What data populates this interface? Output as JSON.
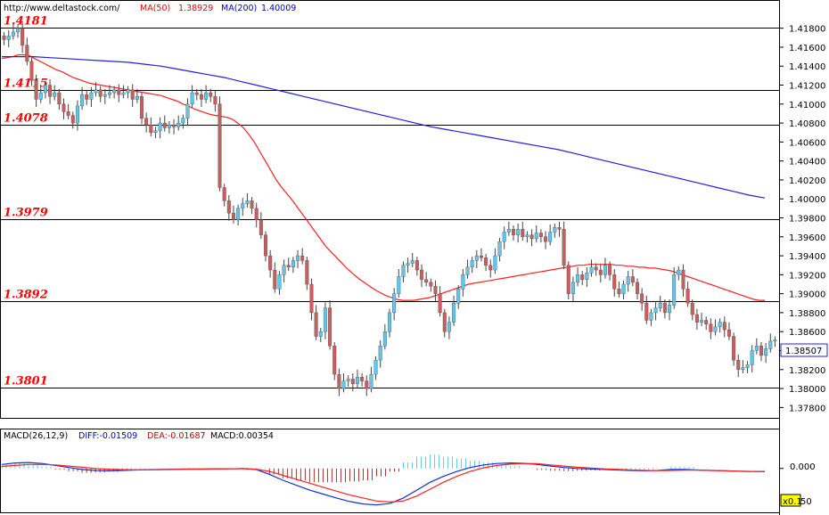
{
  "header": {
    "url": "http://www.deltastock.com/",
    "ma50_label": "MA(50)",
    "ma50_value": "1.38929",
    "ma200_label": "MA(200)",
    "ma200_value": "1.40009"
  },
  "macd_header": {
    "label": "MACD(26,12,9)",
    "diff": "DIFF:-0.01509",
    "dea": "DEA:-0.01687",
    "macd": "MACD:0.00354"
  },
  "colors": {
    "up_candle": "#5bc8f0",
    "down_candle": "#cd5c5c",
    "ma50": "#ff2020",
    "ma200": "#2020e0",
    "level_text": "#ff0000",
    "diff_line": "#1030e0",
    "dea_line": "#ff2020",
    "hist_pos": "#5bc8f0",
    "hist_neg": "#b03030"
  },
  "chart_data": {
    "type": "candlestick",
    "ylim": [
      1.377,
      1.4206
    ],
    "y_ticks": [
      "1.41800",
      "1.41600",
      "1.41400",
      "1.41200",
      "1.41000",
      "1.40800",
      "1.40600",
      "1.40400",
      "1.40200",
      "1.40000",
      "1.39800",
      "1.39600",
      "1.39400",
      "1.39200",
      "1.39000",
      "1.38800",
      "1.38600",
      "1.38400",
      "1.38200",
      "1.38000",
      "1.37800"
    ],
    "current_price": "1.38507",
    "levels": [
      {
        "label": "1.4181",
        "value": 1.4181
      },
      {
        "label": "1.4115",
        "value": 1.4115
      },
      {
        "label": "1.4078",
        "value": 1.4078
      },
      {
        "label": "1.3979",
        "value": 1.3979
      },
      {
        "label": "1.3892",
        "value": 1.3892
      },
      {
        "label": "1.3801",
        "value": 1.3801
      }
    ],
    "closes": [
      1.4168,
      1.4172,
      1.4176,
      1.418,
      1.4162,
      1.4145,
      1.4125,
      1.4105,
      1.4112,
      1.412,
      1.4108,
      1.4112,
      1.41,
      1.4092,
      1.4088,
      1.408,
      1.4098,
      1.411,
      1.4105,
      1.4112,
      1.4115,
      1.4108,
      1.411,
      1.4112,
      1.4115,
      1.411,
      1.4112,
      1.4115,
      1.4105,
      1.4108,
      1.4085,
      1.4078,
      1.407,
      1.4072,
      1.408,
      1.4075,
      1.4078,
      1.4076,
      1.408,
      1.4085,
      1.41,
      1.4112,
      1.411,
      1.4105,
      1.4112,
      1.4108,
      1.41,
      1.4012,
      1.3998,
      1.3985,
      1.3978,
      1.399,
      1.3995,
      1.3998,
      1.399,
      1.3978,
      1.3962,
      1.394,
      1.3925,
      1.3905,
      1.392,
      1.393,
      1.3928,
      1.3935,
      1.394,
      1.3935,
      1.391,
      1.388,
      1.3855,
      1.386,
      1.3885,
      1.3845,
      1.3815,
      1.38,
      1.3808,
      1.381,
      1.3805,
      1.3812,
      1.3808,
      1.38,
      1.3815,
      1.383,
      1.3845,
      1.386,
      1.388,
      1.39,
      1.3918,
      1.393,
      1.3932,
      1.3935,
      1.3925,
      1.3915,
      1.3912,
      1.3908,
      1.39,
      1.388,
      1.386,
      1.387,
      1.389,
      1.3905,
      1.392,
      1.3928,
      1.3935,
      1.394,
      1.3938,
      1.393,
      1.3925,
      1.394,
      1.3955,
      1.3965,
      1.3968,
      1.3962,
      1.3968,
      1.396,
      1.3962,
      1.3958,
      1.3964,
      1.396,
      1.3955,
      1.3965,
      1.397,
      1.3968,
      1.393,
      1.39,
      1.3912,
      1.392,
      1.3915,
      1.3922,
      1.3928,
      1.3925,
      1.392,
      1.393,
      1.392,
      1.3905,
      1.39,
      1.391,
      1.3918,
      1.3912,
      1.39,
      1.389,
      1.3872,
      1.388,
      1.3885,
      1.389,
      1.388,
      1.3888,
      1.392,
      1.3925,
      1.3905,
      1.389,
      1.3878,
      1.387,
      1.3872,
      1.3868,
      1.386,
      1.3865,
      1.387,
      1.3862,
      1.3855,
      1.383,
      1.382,
      1.3822,
      1.3825,
      1.384,
      1.3845,
      1.3835,
      1.3842,
      1.385,
      1.3851
    ],
    "ma50": [
      1.4148,
      1.4149,
      1.415,
      1.4152,
      1.4152,
      1.4151,
      1.4148,
      1.4145,
      1.4142,
      1.4139,
      1.4136,
      1.4134,
      1.4131,
      1.4128,
      1.4126,
      1.4124,
      1.4122,
      1.4121,
      1.412,
      1.4119,
      1.4118,
      1.4117,
      1.4116,
      1.4115,
      1.4114,
      1.4113,
      1.4112,
      1.4111,
      1.411,
      1.4109,
      1.4107,
      1.4105,
      1.4103,
      1.41,
      1.4098,
      1.4095,
      1.4093,
      1.4091,
      1.4089,
      1.4088,
      1.4087,
      1.4086,
      1.4084,
      1.408,
      1.4075,
      1.4068,
      1.406,
      1.405,
      1.404,
      1.403,
      1.402,
      1.4012,
      1.4005,
      1.3998,
      1.399,
      1.3982,
      1.3974,
      1.3966,
      1.3958,
      1.395,
      1.3944,
      1.3938,
      1.3932,
      1.3926,
      1.3921,
      1.3916,
      1.3912,
      1.3908,
      1.3904,
      1.3901,
      1.3898,
      1.3896,
      1.3894,
      1.3893,
      1.3893,
      1.3893,
      1.3894,
      1.3895,
      1.3896,
      1.3898,
      1.39,
      1.3902,
      1.3904,
      1.3906,
      1.3908,
      1.391,
      1.3911,
      1.3912,
      1.3913,
      1.3914,
      1.3915,
      1.3916,
      1.3917,
      1.3918,
      1.3919,
      1.392,
      1.3921,
      1.3922,
      1.3923,
      1.3924,
      1.3925,
      1.3926,
      1.3927,
      1.3928,
      1.3929,
      1.393,
      1.393,
      1.3931,
      1.3931,
      1.3931,
      1.3931,
      1.3931,
      1.393,
      1.393,
      1.3929,
      1.3929,
      1.3928,
      1.3928,
      1.3927,
      1.3927,
      1.3926,
      1.3925,
      1.3924,
      1.3922,
      1.392,
      1.3918,
      1.3916,
      1.3914,
      1.3912,
      1.391,
      1.3908,
      1.3906,
      1.3904,
      1.3902,
      1.39,
      1.3898,
      1.3896,
      1.3894,
      1.3893,
      1.3893
    ],
    "ma200": [
      1.415,
      1.415,
      1.415,
      1.4149,
      1.4148,
      1.4147,
      1.4146,
      1.4145,
      1.4144,
      1.4142,
      1.414,
      1.4137,
      1.4134,
      1.4131,
      1.4128,
      1.4124,
      1.412,
      1.4116,
      1.4112,
      1.4108,
      1.4104,
      1.41,
      1.4096,
      1.4092,
      1.4088,
      1.4084,
      1.408,
      1.4076,
      1.4073,
      1.407,
      1.4067,
      1.4064,
      1.4061,
      1.4058,
      1.4055,
      1.4052,
      1.4048,
      1.4044,
      1.404,
      1.4036,
      1.4032,
      1.4028,
      1.4024,
      1.402,
      1.4016,
      1.4012,
      1.4008,
      1.4004,
      1.4001
    ],
    "macd_ylim": [
      -0.02,
      0.013
    ],
    "macd_zero_label": "0.000",
    "macd_diff": [
      0.002,
      0.0028,
      0.003,
      0.0025,
      0.0015,
      0.0005,
      -0.0005,
      -0.001,
      -0.0012,
      -0.001,
      -0.0008,
      -0.0006,
      -0.0005,
      -0.0004,
      -0.0003,
      -0.0003,
      -0.0002,
      -0.0002,
      0.0,
      -0.0005,
      -0.003,
      -0.006,
      -0.0085,
      -0.011,
      -0.013,
      -0.015,
      -0.0168,
      -0.018,
      -0.0185,
      -0.0178,
      -0.015,
      -0.011,
      -0.007,
      -0.004,
      -0.0015,
      0.0005,
      0.0018,
      0.0025,
      0.0028,
      0.0026,
      0.002,
      0.0012,
      0.0005,
      0.0,
      -0.0003,
      -0.0005,
      -0.0008,
      -0.001,
      -0.0012,
      -0.001,
      -0.0005,
      -0.0005,
      -0.0008,
      -0.001,
      -0.0012,
      -0.0014,
      -0.0015,
      -0.0015
    ],
    "macd_dea": [
      0.001,
      0.0015,
      0.002,
      0.002,
      0.0018,
      0.0012,
      0.0006,
      0.0,
      -0.0004,
      -0.0006,
      -0.0007,
      -0.0007,
      -0.0006,
      -0.0005,
      -0.0004,
      -0.0004,
      -0.0003,
      -0.0002,
      -0.0002,
      -0.0004,
      -0.0015,
      -0.0035,
      -0.0055,
      -0.0075,
      -0.0095,
      -0.0115,
      -0.0135,
      -0.015,
      -0.0165,
      -0.017,
      -0.0165,
      -0.014,
      -0.0105,
      -0.007,
      -0.004,
      -0.0015,
      0.0003,
      0.0015,
      0.0022,
      0.0025,
      0.0024,
      0.0018,
      0.0012,
      0.0006,
      0.0002,
      -0.0002,
      -0.0005,
      -0.0008,
      -0.001,
      -0.0011,
      -0.001,
      -0.0009,
      -0.0009,
      -0.001,
      -0.0012,
      -0.0014,
      -0.0015,
      -0.0016
    ]
  }
}
